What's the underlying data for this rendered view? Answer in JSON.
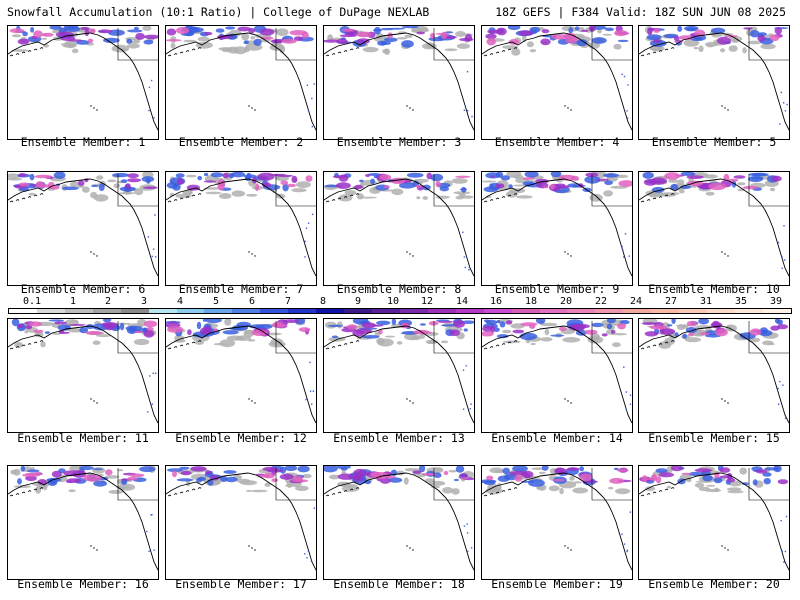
{
  "header": {
    "title_left": "Snowfall Accumulation (10:1 Ratio) | College of DuPage NEXLAB",
    "title_right": "18Z GEFS | F384 Valid: 18Z SUN JUN 08 2025"
  },
  "members": [
    {
      "label": "Ensemble Member: 1"
    },
    {
      "label": "Ensemble Member: 2"
    },
    {
      "label": "Ensemble Member: 3"
    },
    {
      "label": "Ensemble Member: 4"
    },
    {
      "label": "Ensemble Member: 5"
    },
    {
      "label": "Ensemble Member: 6"
    },
    {
      "label": "Ensemble Member: 7"
    },
    {
      "label": "Ensemble Member: 8"
    },
    {
      "label": "Ensemble Member: 9"
    },
    {
      "label": "Ensemble Member: 10"
    },
    {
      "label": "Ensemble Member: 11"
    },
    {
      "label": "Ensemble Member: 12"
    },
    {
      "label": "Ensemble Member: 13"
    },
    {
      "label": "Ensemble Member: 14"
    },
    {
      "label": "Ensemble Member: 15"
    },
    {
      "label": "Ensemble Member: 16"
    },
    {
      "label": "Ensemble Member: 17"
    },
    {
      "label": "Ensemble Member: 18"
    },
    {
      "label": "Ensemble Member: 19"
    },
    {
      "label": "Ensemble Member: 20"
    }
  ],
  "colorbar": {
    "labels": [
      "0.1",
      "1",
      "2",
      "3",
      "4",
      "5",
      "6",
      "7",
      "8",
      "9",
      "10",
      "12",
      "14",
      "16",
      "18",
      "20",
      "22",
      "24",
      "27",
      "31",
      "35",
      "39"
    ],
    "colors": [
      "#ffffff",
      "#d9d9d9",
      "#bdbdbd",
      "#a3a3a3",
      "#8a8a8a",
      "#b8e6f0",
      "#8ccbee",
      "#6aa5e8",
      "#4f80e2",
      "#3355dd",
      "#2233cc",
      "#1010aa",
      "#3d1a8a",
      "#5a1f9a",
      "#7a2aaa",
      "#9b30b8",
      "#b23ac4",
      "#c84bd0",
      "#d65fb8",
      "#e070c0",
      "#e884b8",
      "#ee98b0",
      "#f2aaa0",
      "#f6bca8",
      "#f8ccb8",
      "#fadcc8",
      "#fde8d8",
      "#fff2e6"
    ]
  },
  "map_colors": {
    "snow_light": "#b0b0b0",
    "snow_blue": "#3a5fe0",
    "snow_purple": "#9b30c8",
    "snow_pink": "#e060c0",
    "coast": "#000000",
    "border": "#c07070"
  }
}
